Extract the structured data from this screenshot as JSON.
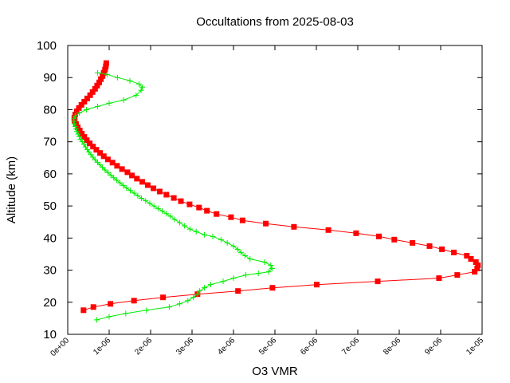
{
  "chart_data": {
    "type": "line",
    "title": "Occultations from 2025-08-03",
    "xlabel": "O3 VMR",
    "ylabel": "Altitude (km)",
    "xlim": [
      0,
      1e-05
    ],
    "ylim": [
      10,
      100
    ],
    "x_ticks": [
      "0e+00",
      "1e-06",
      "2e-06",
      "3e-06",
      "4e-06",
      "5e-06",
      "6e-06",
      "7e-06",
      "8e-06",
      "9e-06",
      "1e-05"
    ],
    "y_ticks": [
      "10",
      "20",
      "30",
      "40",
      "50",
      "60",
      "70",
      "80",
      "90",
      "100"
    ],
    "grid": false,
    "colors": {
      "red_series": "#ff0000",
      "green_series": "#00ee00"
    },
    "series": [
      {
        "marker": "filled-square",
        "color": "#ff0000",
        "points": [
          [
            3.8e-07,
            17.5
          ],
          [
            6.2e-07,
            18.5
          ],
          [
            1.03e-06,
            19.5
          ],
          [
            1.6e-06,
            20.5
          ],
          [
            2.3e-06,
            21.5
          ],
          [
            3.13e-06,
            22.5
          ],
          [
            4.11e-06,
            23.5
          ],
          [
            4.94e-06,
            24.5
          ],
          [
            6.01e-06,
            25.5
          ],
          [
            7.48e-06,
            26.5
          ],
          [
            8.96e-06,
            27.5
          ],
          [
            9.4e-06,
            28.5
          ],
          [
            9.82e-06,
            29.5
          ],
          [
            9.88e-06,
            30.5
          ],
          [
            9.9e-06,
            31.5
          ],
          [
            9.85e-06,
            32.5
          ],
          [
            9.73e-06,
            33.5
          ],
          [
            9.63e-06,
            34.5
          ],
          [
            9.32e-06,
            35.5
          ],
          [
            9.03e-06,
            36.5
          ],
          [
            8.73e-06,
            37.5
          ],
          [
            8.32e-06,
            38.5
          ],
          [
            7.88e-06,
            39.5
          ],
          [
            7.51e-06,
            40.5
          ],
          [
            6.96e-06,
            41.5
          ],
          [
            6.29e-06,
            42.5
          ],
          [
            5.46e-06,
            43.5
          ],
          [
            4.78e-06,
            44.5
          ],
          [
            4.22e-06,
            45.5
          ],
          [
            3.94e-06,
            46.5
          ],
          [
            3.59e-06,
            47.5
          ],
          [
            3.36e-06,
            48.5
          ],
          [
            3.17e-06,
            49.5
          ],
          [
            2.94e-06,
            50.5
          ],
          [
            2.73e-06,
            51.5
          ],
          [
            2.56e-06,
            52.5
          ],
          [
            2.38e-06,
            53.5
          ],
          [
            2.22e-06,
            54.5
          ],
          [
            2.07e-06,
            55.5
          ],
          [
            1.93e-06,
            56.5
          ],
          [
            1.8e-06,
            57.5
          ],
          [
            1.67e-06,
            58.5
          ],
          [
            1.55e-06,
            59.5
          ],
          [
            1.44e-06,
            60.5
          ],
          [
            1.31e-06,
            61.5
          ],
          [
            1.19e-06,
            62.5
          ],
          [
            1.08e-06,
            63.5
          ],
          [
            9.7e-07,
            64.5
          ],
          [
            8.7e-07,
            65.5
          ],
          [
            7.8e-07,
            66.5
          ],
          [
            6.9e-07,
            67.5
          ],
          [
            6.1e-07,
            68.5
          ],
          [
            5.3e-07,
            69.5
          ],
          [
            4.6e-07,
            70.5
          ],
          [
            4e-07,
            71.5
          ],
          [
            3.4e-07,
            72.5
          ],
          [
            2.9e-07,
            73.5
          ],
          [
            2.4e-07,
            74.5
          ],
          [
            2e-07,
            75.5
          ],
          [
            1.7e-07,
            76.5
          ],
          [
            1.6e-07,
            77.5
          ],
          [
            1.8e-07,
            78.5
          ],
          [
            2.2e-07,
            79.5
          ],
          [
            2.7e-07,
            80.5
          ],
          [
            3.3e-07,
            81.5
          ],
          [
            4e-07,
            82.5
          ],
          [
            4.7e-07,
            83.5
          ],
          [
            5.4e-07,
            84.5
          ],
          [
            6e-07,
            85.5
          ],
          [
            6.6e-07,
            86.5
          ],
          [
            7.1e-07,
            87.5
          ],
          [
            7.6e-07,
            88.5
          ],
          [
            8e-07,
            89.5
          ],
          [
            8.4e-07,
            90.5
          ],
          [
            8.7e-07,
            91.5
          ],
          [
            9e-07,
            92.5
          ],
          [
            9.2e-07,
            93.5
          ],
          [
            9.3e-07,
            94.5
          ]
        ]
      },
      {
        "marker": "plus",
        "color": "#00ee00",
        "points": [
          [
            7e-07,
            14.5
          ],
          [
            1e-06,
            15.5
          ],
          [
            1.4e-06,
            16.5
          ],
          [
            1.9e-06,
            17.5
          ],
          [
            2.45e-06,
            18.5
          ],
          [
            2.7e-06,
            19.5
          ],
          [
            2.9e-06,
            20.5
          ],
          [
            3.03e-06,
            21.5
          ],
          [
            3.13e-06,
            22.5
          ],
          [
            3.18e-06,
            23.5
          ],
          [
            3.3e-06,
            24.5
          ],
          [
            3.45e-06,
            25.5
          ],
          [
            3.75e-06,
            26.5
          ],
          [
            4e-06,
            27.5
          ],
          [
            4.3e-06,
            28.5
          ],
          [
            4.6e-06,
            29.0
          ],
          [
            4.85e-06,
            29.5
          ],
          [
            4.93e-06,
            30.5
          ],
          [
            4.9e-06,
            31.5
          ],
          [
            4.75e-06,
            32.5
          ],
          [
            4.4e-06,
            33.5
          ],
          [
            4.28e-06,
            34.5
          ],
          [
            4.18e-06,
            35.5
          ],
          [
            4.1e-06,
            36.5
          ],
          [
            4e-06,
            37.5
          ],
          [
            3.85e-06,
            38.5
          ],
          [
            3.7e-06,
            39.5
          ],
          [
            3.5e-06,
            40.5
          ],
          [
            3.3e-06,
            41.0
          ],
          [
            3.1e-06,
            42.0
          ],
          [
            2.95e-06,
            42.8
          ],
          [
            2.82e-06,
            43.8
          ],
          [
            2.7e-06,
            44.8
          ],
          [
            2.58e-06,
            45.8
          ],
          [
            2.48e-06,
            46.8
          ],
          [
            2.38e-06,
            47.6
          ],
          [
            2.28e-06,
            48.4
          ],
          [
            2.18e-06,
            49.2
          ],
          [
            2.08e-06,
            50.0
          ],
          [
            1.98e-06,
            50.8
          ],
          [
            1.88e-06,
            51.6
          ],
          [
            1.78e-06,
            52.4
          ],
          [
            1.69e-06,
            53.2
          ],
          [
            1.6e-06,
            54.0
          ],
          [
            1.51e-06,
            54.8
          ],
          [
            1.42e-06,
            55.6
          ],
          [
            1.34e-06,
            56.4
          ],
          [
            1.26e-06,
            57.2
          ],
          [
            1.18e-06,
            58.0
          ],
          [
            1.11e-06,
            58.8
          ],
          [
            1.04e-06,
            59.6
          ],
          [
            9.7e-07,
            60.4
          ],
          [
            9e-07,
            61.2
          ],
          [
            8.4e-07,
            62.0
          ],
          [
            7.8e-07,
            62.8
          ],
          [
            7.2e-07,
            63.6
          ],
          [
            6.6e-07,
            64.4
          ],
          [
            6.1e-07,
            65.2
          ],
          [
            5.6e-07,
            66.0
          ],
          [
            5.1e-07,
            66.8
          ],
          [
            4.7e-07,
            67.6
          ],
          [
            4.3e-07,
            68.4
          ],
          [
            3.9e-07,
            69.2
          ],
          [
            3.5e-07,
            70.0
          ],
          [
            3.1e-07,
            70.8
          ],
          [
            2.8e-07,
            71.6
          ],
          [
            2.5e-07,
            72.4
          ],
          [
            2.2e-07,
            73.2
          ],
          [
            2e-07,
            74.0
          ],
          [
            1.8e-07,
            74.8
          ],
          [
            1.6e-07,
            75.6
          ],
          [
            1.5e-07,
            76.4
          ],
          [
            1.5e-07,
            77.2
          ],
          [
            1.8e-07,
            78.0
          ],
          [
            2.8e-07,
            79.0
          ],
          [
            4.5e-07,
            80.0
          ],
          [
            7.2e-07,
            81.0
          ],
          [
            1e-06,
            82.0
          ],
          [
            1.35e-06,
            83.0
          ],
          [
            1.65e-06,
            84.5
          ],
          [
            1.77e-06,
            86.0
          ],
          [
            1.8e-06,
            87.0
          ],
          [
            1.72e-06,
            88.0
          ],
          [
            1.5e-06,
            89.0
          ],
          [
            1.2e-06,
            90.0
          ],
          [
            9.5e-07,
            91.0
          ],
          [
            7.2e-07,
            91.5
          ]
        ]
      }
    ]
  }
}
